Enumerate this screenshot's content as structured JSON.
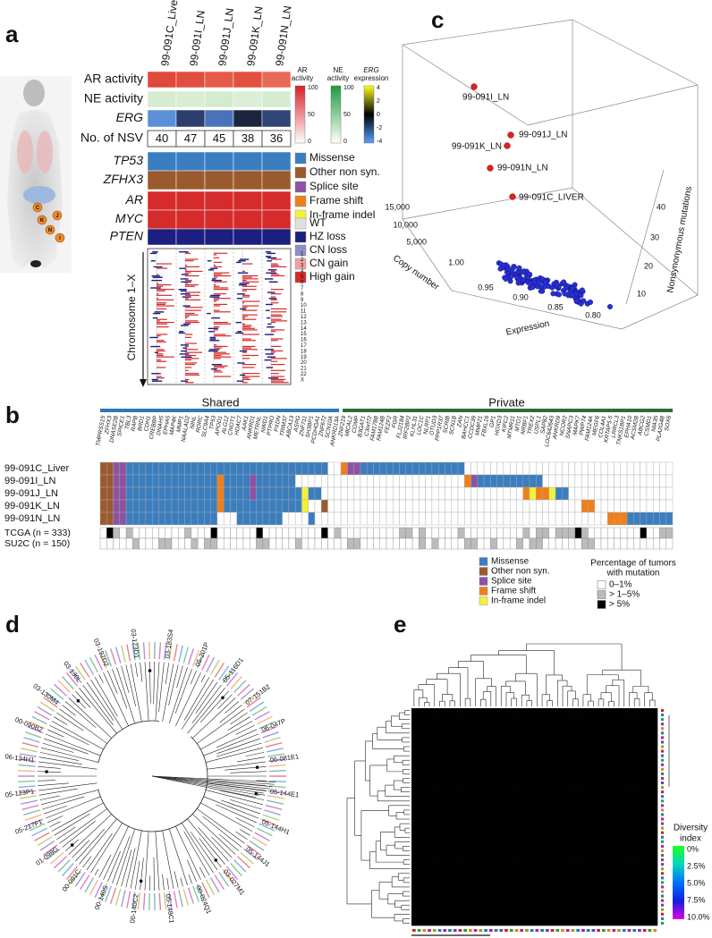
{
  "panel_labels": [
    "a",
    "b",
    "c",
    "d",
    "e"
  ],
  "panel_a": {
    "lesions": [
      "C",
      "J",
      "K",
      "N",
      "I"
    ],
    "samples": [
      "99-091C_Liver",
      "99-091I_LN",
      "99-091J_LN",
      "99-091K_LN",
      "99-091N_LN"
    ],
    "rows": [
      "AR activity",
      "NE activity",
      "ERG",
      "No. of NSV",
      "TP53",
      "ZFHX3",
      "AR",
      "MYC",
      "PTEN"
    ],
    "nsv": [
      40,
      47,
      45,
      38,
      36
    ],
    "chromosome_label": "Chromosome 1–X",
    "chromosomes": [
      "1",
      "2",
      "3",
      "4",
      "5",
      "6",
      "7",
      "8",
      "9",
      "10",
      "11",
      "12",
      "13",
      "14",
      "15",
      "16",
      "17",
      "18",
      "19",
      "20",
      "21",
      "22",
      "X"
    ],
    "scales": [
      {
        "title": [
          "AR",
          "activity"
        ],
        "ticks": [
          100,
          50,
          0
        ]
      },
      {
        "title": [
          "NE",
          "activity"
        ],
        "ticks": [
          100,
          50,
          0
        ]
      },
      {
        "title": [
          "ERG",
          "expression"
        ],
        "ticks": [
          4,
          2,
          0,
          -2,
          -4
        ]
      }
    ],
    "legend_mutation": [
      "Missense",
      "Other non syn.",
      "Splice site",
      "Frame shift",
      "In-frame indel"
    ],
    "legend_cn": [
      "WT",
      "HZ loss",
      "CN loss",
      "CN gain",
      "High gain"
    ]
  },
  "panel_b": {
    "groups": [
      "Shared",
      "Private"
    ],
    "genes_shared": [
      "TMPRSS15",
      "ZFHX3",
      "DNASE2B",
      "SPICE1",
      "TBL3",
      "RAPB",
      "BRD1",
      "CDH1",
      "CREBBP",
      "DNAH5",
      "EPHA5",
      "MAP4K",
      "MMP1",
      "NAALAD2",
      "NINL",
      "RORC",
      "SLC9A4",
      "TP53",
      "APOD1",
      "ALG12",
      "CNOT1",
      "HDAC7",
      "AAK1",
      "ANKRD1",
      "METRNL",
      "NWD1",
      "PTPRO",
      "PXDN",
      "TRIM37",
      "ABCA13",
      "ASPG",
      "ZNF711",
      "SH3BP1",
      "PCDHGA1",
      "ZNF672",
      "SCN10A",
      "ANKRD13A"
    ],
    "genes_private": [
      "ZNF219",
      "MICAL2",
      "COMP",
      "B3GAT1",
      "C3orf72",
      "FAM178B",
      "FAM124B",
      "FEZF2",
      "FGR",
      "FLJ2184",
      "IRF2BP2",
      "KLHL31",
      "LOC1C",
      "NLRP1",
      "OTUD3",
      "PPP1R37",
      "SCRIB",
      "SCN1B",
      "ZAN",
      "BAHCC1",
      "CCDC39",
      "MMP21",
      "FBXL16",
      "GP1",
      "HOXD3",
      "KIFC2",
      "MTMR11",
      "MTO1",
      "NRBF1",
      "TREX2",
      "USPL1",
      "SAP82",
      "LOC642643",
      "ANKRD9",
      "NCOR2",
      "SNAPC3",
      "MAPK7",
      "PWP74",
      "FAM124A",
      "MEGF6",
      "COL4A1",
      "KRTAP5-5",
      "LRRCL3",
      "TNKS1BP1",
      "EPHA10",
      "ACSM2B",
      "ABCG2",
      "CSMD1",
      "NIA35",
      "PLA2G4B",
      "SOX6"
    ],
    "samples": [
      "99-091C_Liver",
      "99-091I_LN",
      "99-091J_LN",
      "99-091K_LN",
      "99-091N_LN"
    ],
    "cohorts": [
      "TCGA (n = 333)",
      "SU2C (n = 150)"
    ],
    "legend_mutation": [
      "Missense",
      "Other non syn.",
      "Splice site",
      "Frame shift",
      "In-frame indel"
    ],
    "frequency_title": [
      "Percentage of tumors",
      "with mutation"
    ],
    "frequency_levels": [
      "0–1%",
      "> 1–5%",
      "> 5%"
    ]
  },
  "panel_c": {
    "points": [
      "99-091I_LN",
      "99-091J_LN",
      "99-091K_LN",
      "99-091N_LN",
      "99-091C_LIVER"
    ],
    "copy_number_label": "Copy number",
    "copy_number_ticks": [
      "15,000",
      "10,000",
      "5,000"
    ],
    "expression_label": "Expression",
    "expression_ticks": [
      "1.00",
      "0.95",
      "0.90",
      "0.85",
      "0.80"
    ],
    "mutations_label": "Nonsynonymous mutations",
    "mutations_ticks": [
      "10",
      "20",
      "30",
      "40"
    ]
  },
  "panel_d": {
    "labels": [
      "06-134H1",
      "00-090B2",
      "03-130M4",
      "03-130L",
      "03-192D2",
      "03-123D1",
      "03-183S4",
      "05-201P",
      "05-116D1",
      "07-151B2",
      "06-047P",
      "06-081E1",
      "05-144E1",
      "05-144H1",
      "05-144J1",
      "03-027M1",
      "00-024Q1",
      "05-148C1",
      "00-140C2",
      "00-140S",
      "00-091C",
      "01-098G",
      "05-217F1",
      "05-123P1"
    ]
  },
  "panel_e": {
    "legend_title": [
      "Diversity",
      "index"
    ],
    "legend_ticks": [
      "0%",
      "2.5%",
      "5.0%",
      "7.5%",
      "10.0%"
    ]
  }
}
